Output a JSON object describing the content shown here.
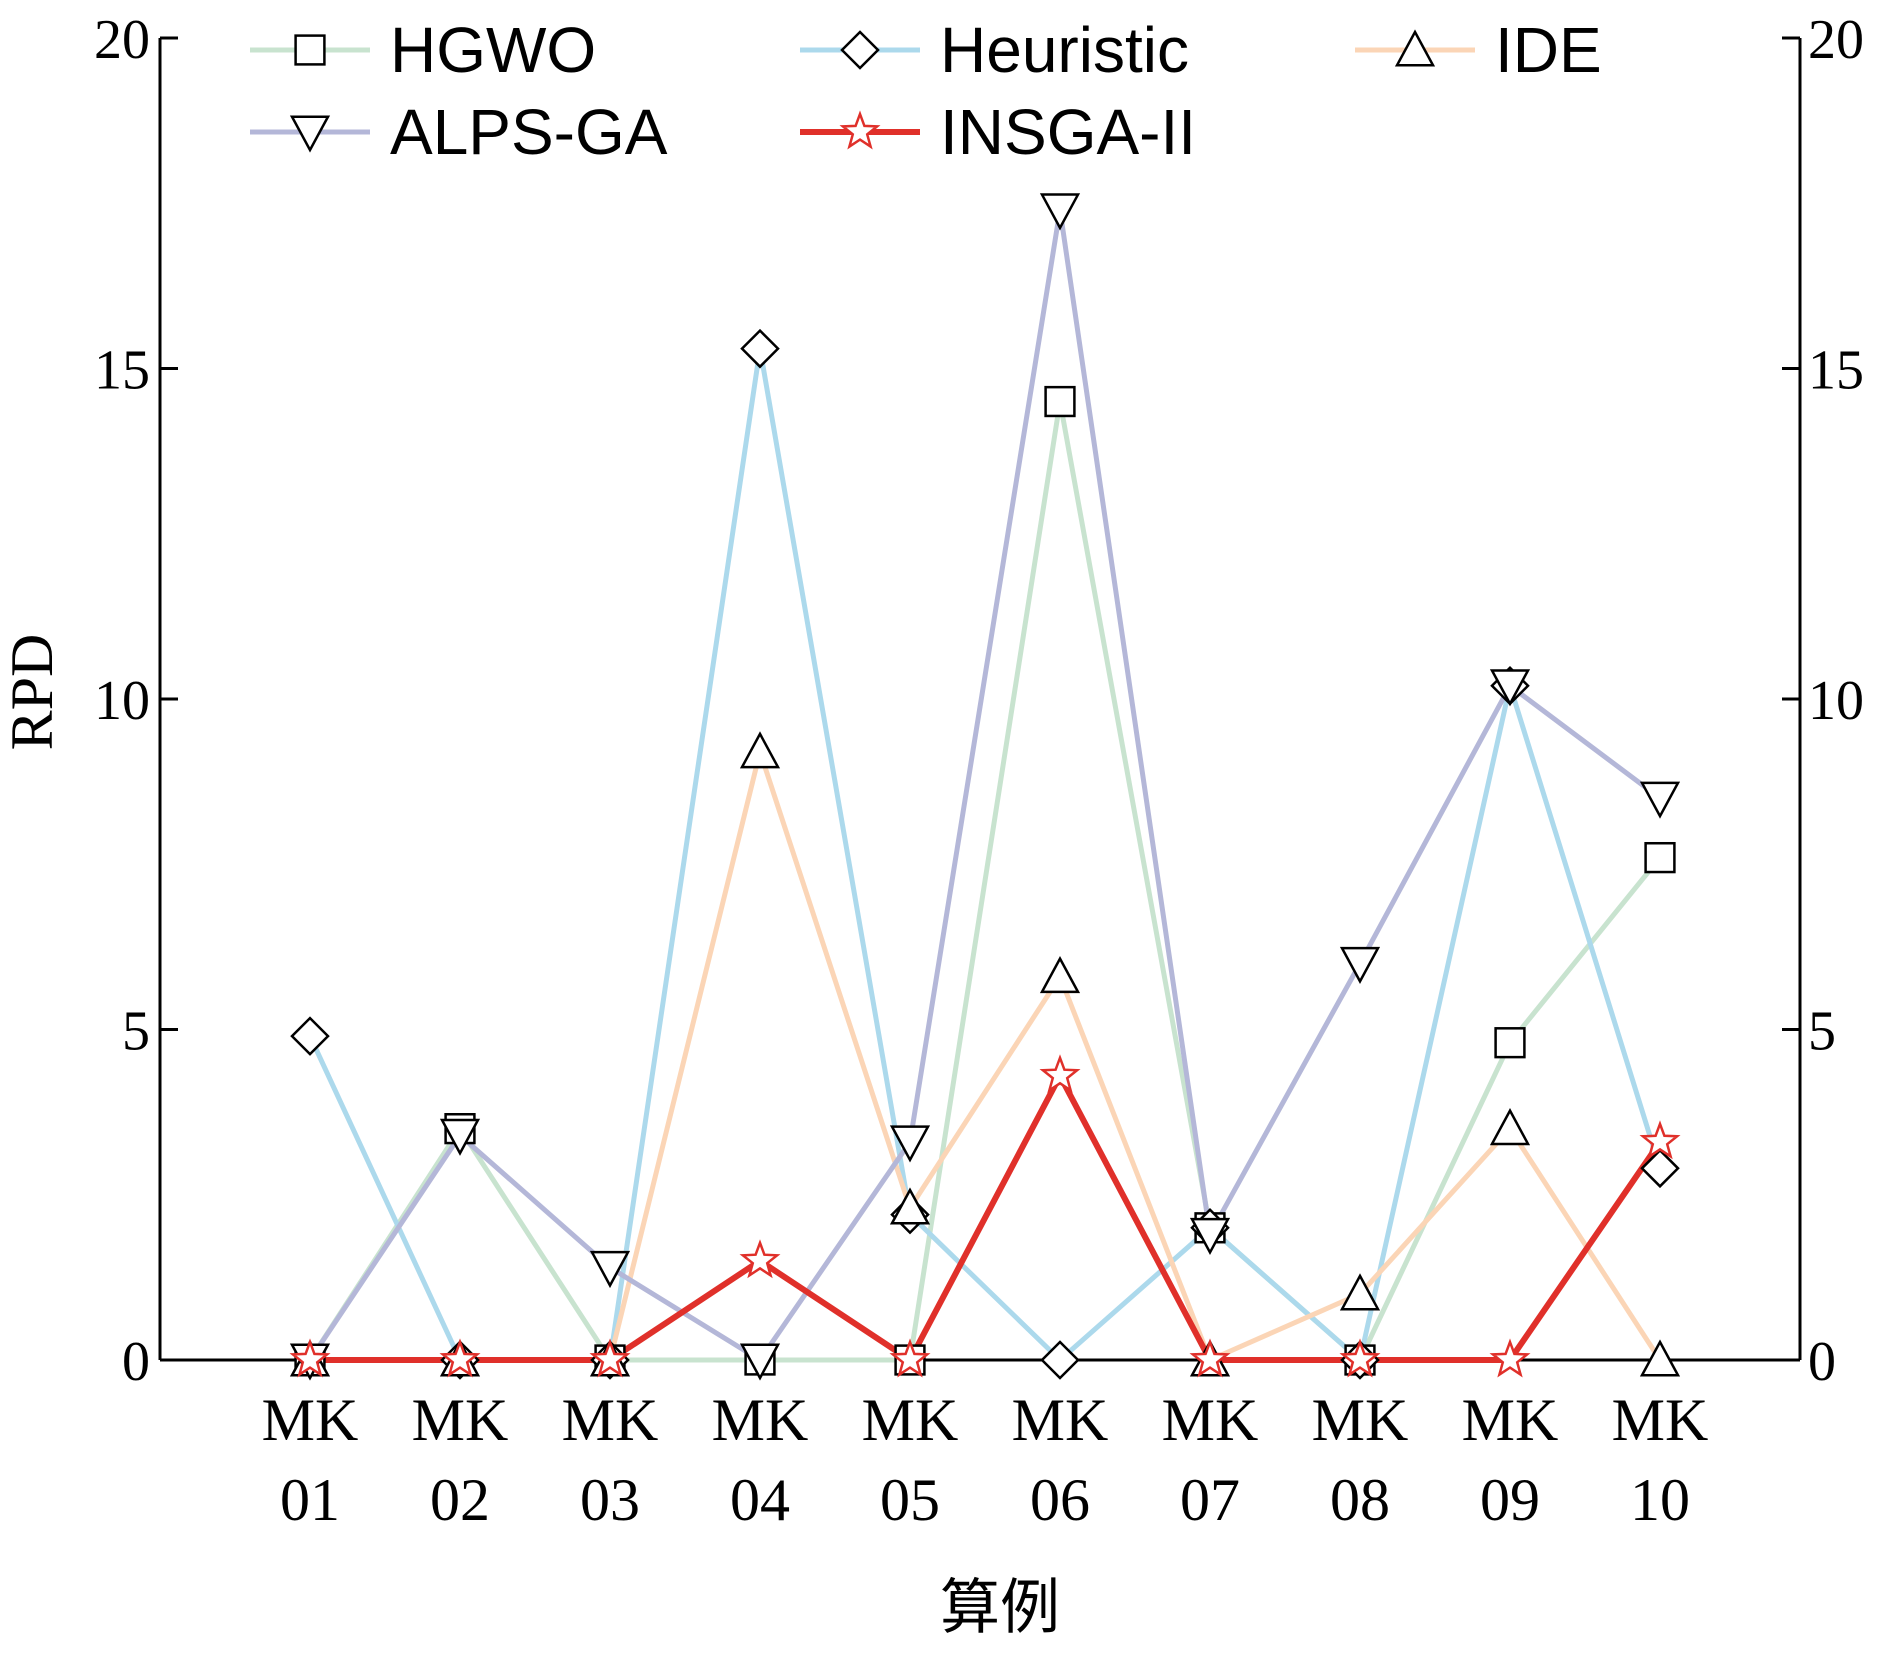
{
  "chart_data": {
    "type": "line",
    "title": "",
    "xlabel": "算例",
    "ylabel": "RPD",
    "ylim": [
      0,
      20
    ],
    "yticks": [
      "0",
      "5",
      "10",
      "15",
      "20"
    ],
    "categories": [
      [
        "MK",
        "01"
      ],
      [
        "MK",
        "02"
      ],
      [
        "MK",
        "03"
      ],
      [
        "MK",
        "04"
      ],
      [
        "MK",
        "05"
      ],
      [
        "MK",
        "06"
      ],
      [
        "MK",
        "07"
      ],
      [
        "MK",
        "08"
      ],
      [
        "MK",
        "09"
      ],
      [
        "MK",
        "10"
      ]
    ],
    "legend_position": "top",
    "grid": false,
    "series": [
      {
        "name": "HGWO",
        "color": "#c8e3cf",
        "marker": "square",
        "values": [
          0,
          3.5,
          0,
          0,
          0,
          14.5,
          2.0,
          0,
          4.8,
          7.6
        ]
      },
      {
        "name": "Heuristic",
        "color": "#acd9ec",
        "marker": "diamond",
        "values": [
          4.9,
          0,
          0,
          15.3,
          2.2,
          0,
          2.0,
          0,
          10.2,
          2.9
        ]
      },
      {
        "name": "IDE",
        "color": "#fbd5b6",
        "marker": "triangle-up",
        "values": [
          0,
          0,
          0,
          9.2,
          2.3,
          5.8,
          0,
          1.0,
          3.5,
          0
        ]
      },
      {
        "name": "ALPS-GA",
        "color": "#b4b7d8",
        "marker": "triangle-down",
        "values": [
          0,
          3.4,
          1.4,
          0,
          3.3,
          17.4,
          1.9,
          6.0,
          10.2,
          8.5
        ]
      },
      {
        "name": "INSGA-II",
        "color": "#e0302a",
        "marker": "star",
        "values": [
          0,
          0,
          0,
          1.5,
          0,
          4.3,
          0,
          0,
          0,
          3.3
        ]
      }
    ]
  }
}
